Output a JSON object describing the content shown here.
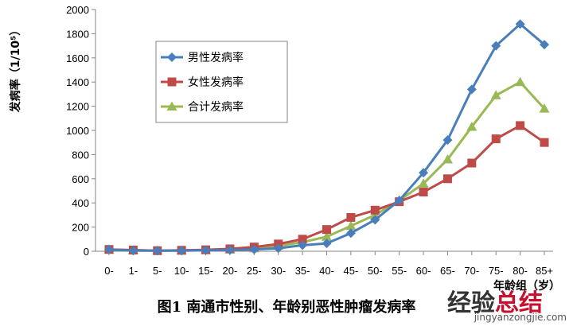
{
  "chart_data": {
    "type": "line",
    "categories": [
      "0-",
      "1-",
      "5-",
      "10-",
      "15-",
      "20-",
      "25-",
      "30-",
      "35-",
      "40-",
      "45-",
      "50-",
      "55-",
      "60-",
      "65-",
      "70-",
      "75-",
      "80-",
      "85+"
    ],
    "series": [
      {
        "name": "男性发病率",
        "color": "#4A7EBB",
        "marker": "diamond",
        "values": [
          15,
          5,
          5,
          5,
          8,
          10,
          15,
          25,
          50,
          65,
          150,
          260,
          420,
          650,
          920,
          1340,
          1700,
          1880,
          1710
        ]
      },
      {
        "name": "女性发病率",
        "color": "#BE4B48",
        "marker": "square",
        "values": [
          15,
          10,
          5,
          8,
          12,
          20,
          35,
          60,
          100,
          180,
          280,
          340,
          410,
          490,
          600,
          730,
          930,
          1040,
          900
        ]
      },
      {
        "name": "合计发病率",
        "color": "#98B954",
        "marker": "triangle",
        "values": [
          15,
          8,
          5,
          6,
          10,
          15,
          25,
          45,
          75,
          120,
          210,
          300,
          420,
          560,
          760,
          1030,
          1290,
          1400,
          1180
        ]
      }
    ],
    "ylim": [
      0,
      2000
    ],
    "yticks": [
      0,
      200,
      400,
      600,
      800,
      1000,
      1200,
      1400,
      1600,
      1800,
      2000
    ],
    "ylabel": "发病率（1/10⁵）",
    "xlabel": "年龄组（岁）",
    "legend_position": "top-left-inside",
    "grid": false
  },
  "caption": "图1 南通市性别、年龄别恶性肿瘤发病率",
  "watermark": {
    "text_a": "经验",
    "text_b": "总结",
    "url": "jingyanzongjie.com"
  }
}
